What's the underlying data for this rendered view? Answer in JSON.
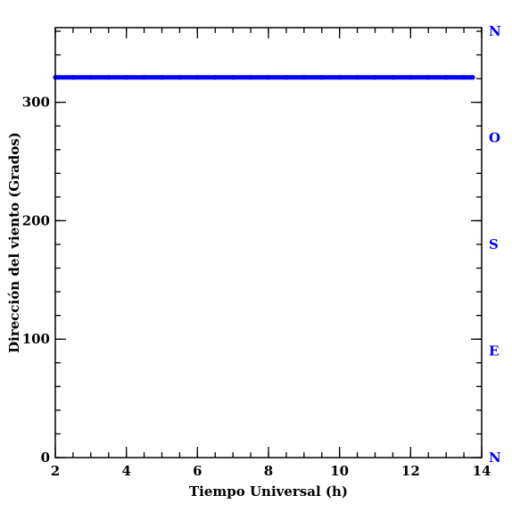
{
  "chart_data": {
    "type": "line",
    "title": "",
    "xlabel": "Tiempo Universal (h)",
    "ylabel": "Dirección del viento (Grados)",
    "xlim": [
      2,
      14
    ],
    "ylim": [
      0,
      363
    ],
    "x_major_ticks": [
      2,
      4,
      6,
      8,
      10,
      12,
      14
    ],
    "x_tick_labels": [
      "2",
      "4",
      "6",
      "8",
      "10",
      "12",
      "14"
    ],
    "x_minor_step": 0.5,
    "y_major_ticks": [
      0,
      100,
      200,
      300
    ],
    "y_tick_labels": [
      "0",
      "100",
      "200",
      "300"
    ],
    "y_minor_step": 20,
    "grid": false,
    "series": [
      {
        "x": [
          2.0,
          2.5,
          3.0,
          3.5,
          4.0,
          4.5,
          5.0,
          5.5,
          6.0,
          6.5,
          7.0,
          7.5,
          8.0,
          8.5,
          9.0,
          9.5,
          10.0,
          10.5,
          11.0,
          11.5,
          12.0,
          12.5,
          13.0,
          13.5,
          13.75
        ],
        "y": [
          321,
          321,
          321,
          321,
          321,
          321,
          321,
          321,
          321,
          321,
          321,
          321,
          321,
          321,
          321,
          321,
          321,
          321,
          321,
          321,
          321,
          321,
          321,
          321,
          321
        ],
        "color": "#0000ff"
      }
    ],
    "secondary_y_axis": {
      "color": "#0000ff",
      "labels": [
        {
          "value": 0,
          "label": "N"
        },
        {
          "value": 90,
          "label": "E"
        },
        {
          "value": 180,
          "label": "S"
        },
        {
          "value": 270,
          "label": "O"
        },
        {
          "value": 360,
          "label": "N"
        }
      ]
    }
  }
}
